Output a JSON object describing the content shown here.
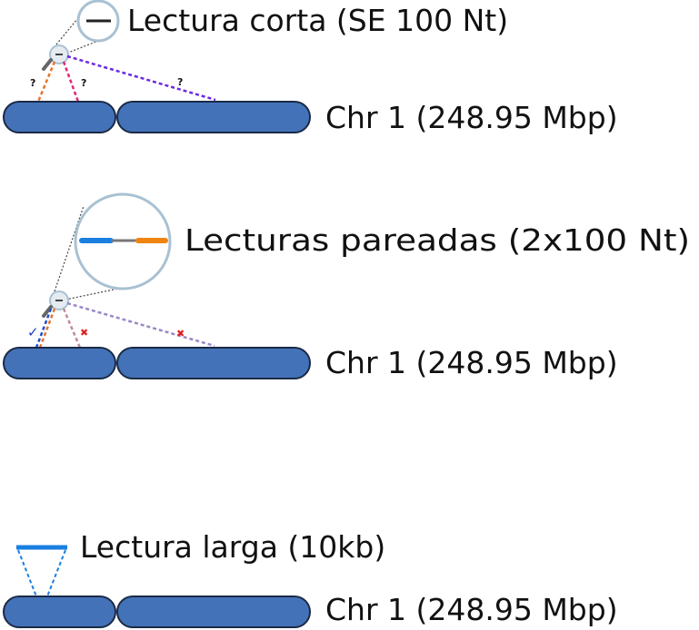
{
  "panels": {
    "short": {
      "read_label": "Lectura corta (SE 100 Nt)",
      "chrom_label": "Chr 1 (248.95 Mbp)",
      "marks": [
        "?",
        "?",
        "?"
      ]
    },
    "paired": {
      "read_label": "Lecturas pareadas (2x100 Nt)",
      "chrom_label": "Chr 1 (248.95 Mbp)",
      "marks": [
        "✓",
        "✖",
        "✖"
      ]
    },
    "long": {
      "read_label": "Lectura larga (10kb)",
      "chrom_label": "Chr 1 (248.95 Mbp)"
    }
  },
  "colors": {
    "chromosome": "#4472b8",
    "chromosome_border": "#1a2a45",
    "magnifier": "#a9c1d2",
    "short_read": "#222222",
    "read_left": "#1a7fe0",
    "read_right": "#f08410",
    "read_link": "#777777",
    "long_read": "#1a7fe0",
    "line_orange": "#e8732a",
    "line_pink": "#e0267a",
    "line_purple": "#6a2ae0",
    "line_mauve": "#c08aa0",
    "line_lavender": "#9a88c8",
    "line_blue": "#1a4fd0"
  }
}
